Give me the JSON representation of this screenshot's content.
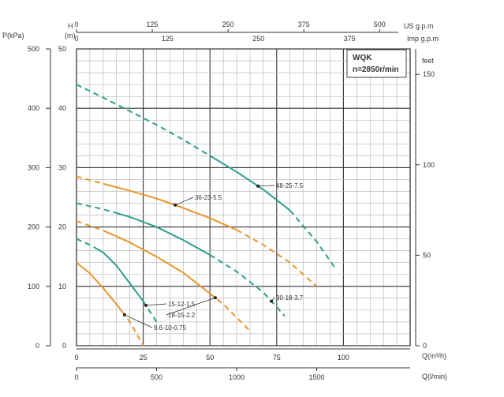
{
  "chart_data": {
    "type": "line",
    "title": "WQK",
    "subtitle": "n=2850r/min",
    "axes": {
      "x_flow_m3h": {
        "label": "Q(m³/h)",
        "range": [
          0,
          125
        ],
        "ticks": [
          0,
          25,
          50,
          75,
          100
        ]
      },
      "x_flow_lmin": {
        "label": "Q(l/min)",
        "range": [
          0,
          2083.33
        ],
        "ticks": [
          0,
          500,
          1000,
          1500
        ]
      },
      "x_us_gpm": {
        "label": "US g.p.m",
        "range": [
          0,
          550
        ],
        "ticks": [
          0,
          125,
          250,
          375,
          500
        ]
      },
      "x_imp_gpm": {
        "label": "Imp g.p.m",
        "range": [
          0,
          458.33
        ],
        "ticks": [
          0,
          125,
          250,
          375
        ]
      },
      "y_head_m": {
        "label_top": "H",
        "label_bottom": "(m)",
        "range": [
          0,
          50
        ],
        "ticks": [
          0,
          10,
          20,
          30,
          40,
          50
        ]
      },
      "y_pressure_kpa": {
        "label": "P(kPa)",
        "range": [
          0,
          500
        ],
        "ticks": [
          0,
          100,
          200,
          300,
          400,
          500
        ]
      },
      "y_head_feet": {
        "label": "feet",
        "range": [
          0,
          164
        ],
        "ticks": [
          0,
          50,
          100,
          150
        ]
      }
    },
    "grid": true,
    "legend_position": "top-right",
    "series": [
      {
        "name": "48-25-7.5",
        "color": "#2e9e8c",
        "x": [
          0,
          10,
          20,
          30,
          40,
          50,
          60,
          70,
          80,
          90,
          97
        ],
        "y": [
          44,
          41.8,
          39.5,
          37.2,
          34.7,
          32,
          29.3,
          26.3,
          22.8,
          17.5,
          13
        ],
        "solid_range": [
          50,
          80
        ]
      },
      {
        "name": "36-23-5.5",
        "color": "#e8962a",
        "x": [
          0,
          10,
          20,
          30,
          40,
          50,
          60,
          70,
          80,
          90
        ],
        "y": [
          28.5,
          27.3,
          26.1,
          24.8,
          23.2,
          21.5,
          19.5,
          17,
          14,
          10
        ],
        "solid_range": [
          10,
          60
        ]
      },
      {
        "name": "30-18-3.7",
        "color": "#2e9e8c",
        "x": [
          0,
          10,
          20,
          30,
          40,
          50,
          60,
          70,
          78
        ],
        "y": [
          24,
          23,
          21.7,
          20,
          17.8,
          15.3,
          12.5,
          9,
          5
        ],
        "solid_range": [
          15,
          50
        ]
      },
      {
        "name": "18-15-2.2",
        "color": "#e8962a",
        "x": [
          0,
          10,
          20,
          30,
          40,
          50,
          55,
          65
        ],
        "y": [
          21,
          19.4,
          17.4,
          15,
          12.3,
          8.8,
          7,
          2.5
        ],
        "solid_range": [
          10,
          50
        ]
      },
      {
        "name": "15-12-1.5",
        "color": "#2e9e8c",
        "x": [
          0,
          5,
          10,
          15,
          20,
          25,
          30
        ],
        "y": [
          18,
          17,
          15.7,
          13.5,
          10.5,
          7.5,
          4
        ],
        "solid_range": [
          8,
          25
        ]
      },
      {
        "name": "9.6-10-0.75",
        "color": "#e8962a",
        "x": [
          0,
          5,
          10,
          15,
          20,
          25
        ],
        "y": [
          14,
          12.2,
          9.7,
          7,
          4,
          0
        ],
        "solid_range": [
          0,
          17
        ]
      }
    ]
  }
}
